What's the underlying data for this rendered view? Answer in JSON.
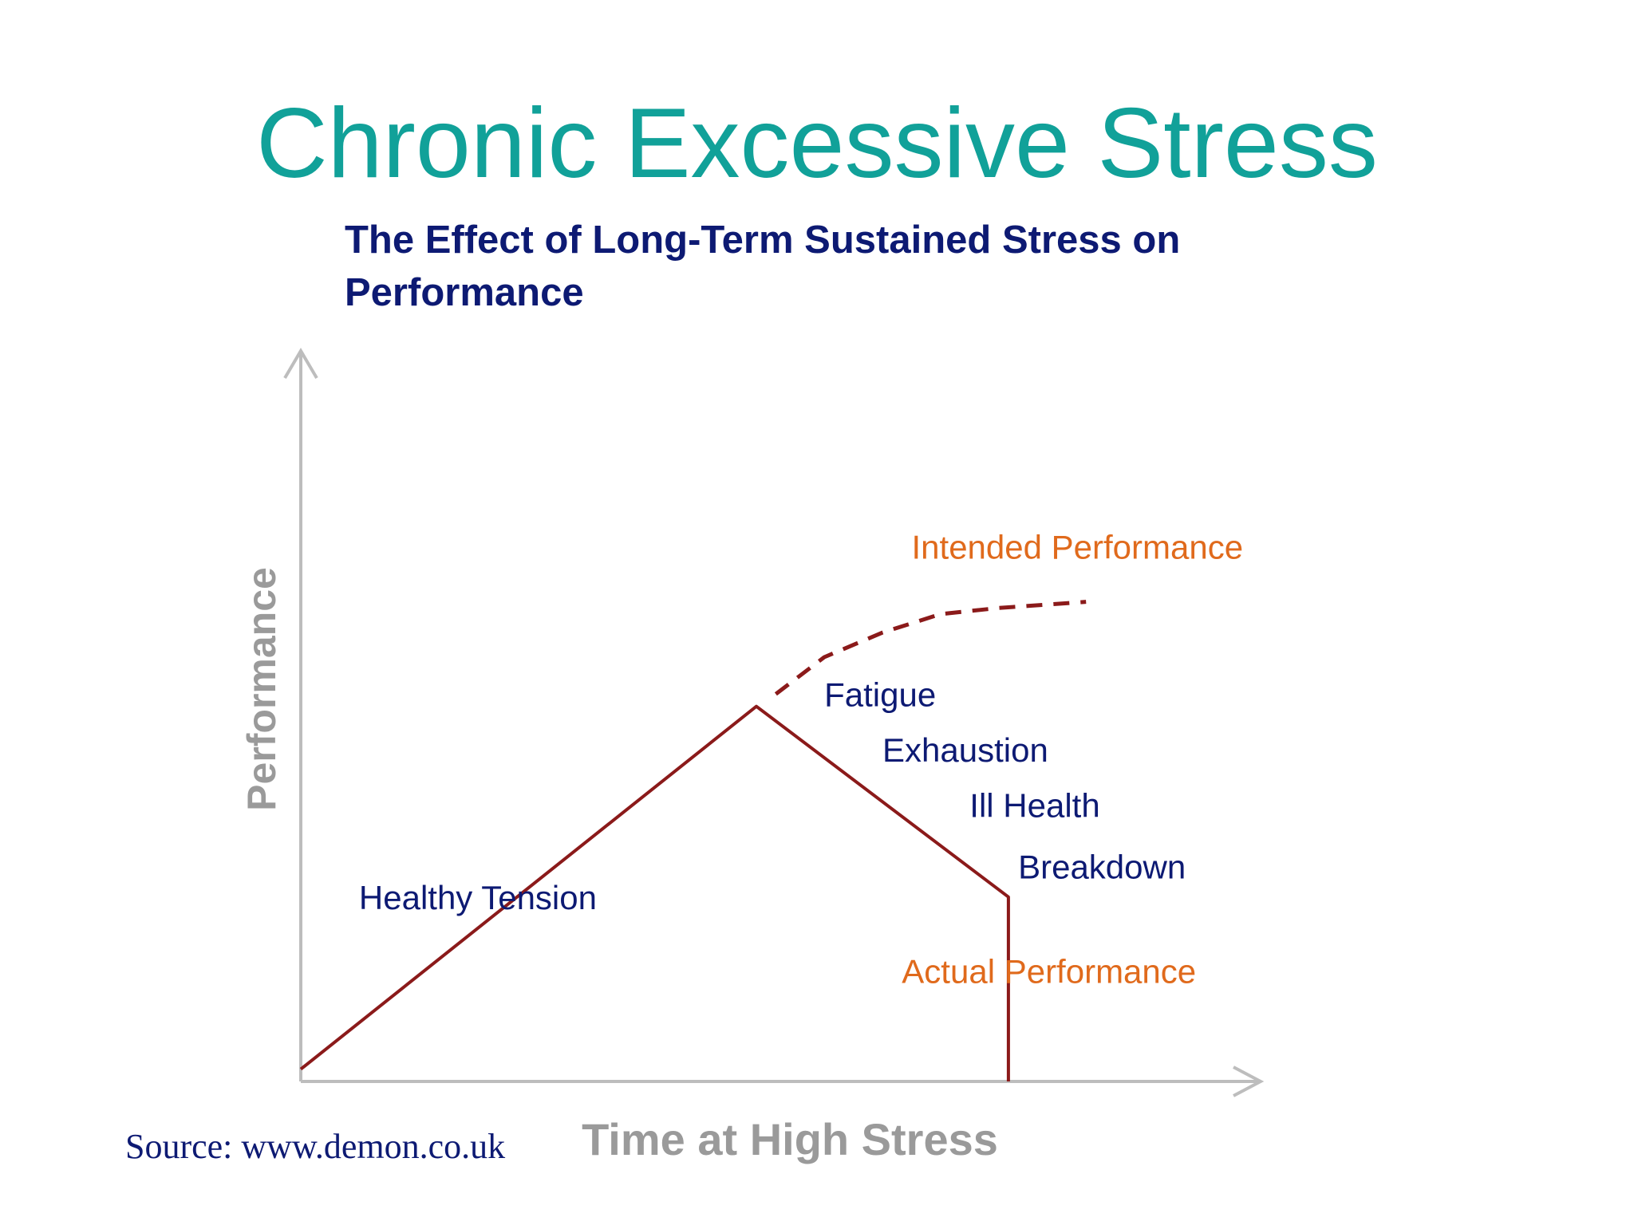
{
  "slide_title": "Chronic Excessive Stress",
  "source": "Source:  www.demon.co.uk",
  "colors": {
    "title": "#11a199",
    "navy_text": "#0d1a73",
    "orange_label": "#e06a1c",
    "line": "#8b1a1a",
    "axis": "#bdbdbd",
    "axis_label": "#9a9a9a"
  },
  "chart_data": {
    "type": "line",
    "title": "The Effect of Long-Term Sustained Stress on Performance",
    "xlabel": "Time at High Stress",
    "ylabel": "Performance",
    "xlim": [
      0,
      100
    ],
    "ylim": [
      0,
      100
    ],
    "grid": false,
    "series": [
      {
        "name": "Actual Performance",
        "style": "solid",
        "points": [
          [
            0,
            2
          ],
          [
            47,
            61
          ],
          [
            73,
            30
          ],
          [
            73,
            0
          ]
        ]
      },
      {
        "name": "Intended Performance",
        "style": "dashed",
        "points": [
          [
            49,
            63
          ],
          [
            54,
            69
          ],
          [
            60,
            73
          ],
          [
            66,
            76
          ],
          [
            72,
            77
          ],
          [
            81,
            78
          ]
        ]
      }
    ],
    "annotations": [
      {
        "text": "Intended Performance",
        "x": 63,
        "y": 85,
        "color": "orange"
      },
      {
        "text": "Fatigue",
        "x": 54,
        "y": 61,
        "color": "navy"
      },
      {
        "text": "Exhaustion",
        "x": 60,
        "y": 52,
        "color": "navy"
      },
      {
        "text": "Ill Health",
        "x": 69,
        "y": 43,
        "color": "navy"
      },
      {
        "text": "Breakdown",
        "x": 74,
        "y": 33,
        "color": "navy"
      },
      {
        "text": "Healthy Tension",
        "x": 6,
        "y": 28,
        "color": "navy"
      },
      {
        "text": "Actual Performance",
        "x": 62,
        "y": 16,
        "color": "orange"
      }
    ]
  }
}
